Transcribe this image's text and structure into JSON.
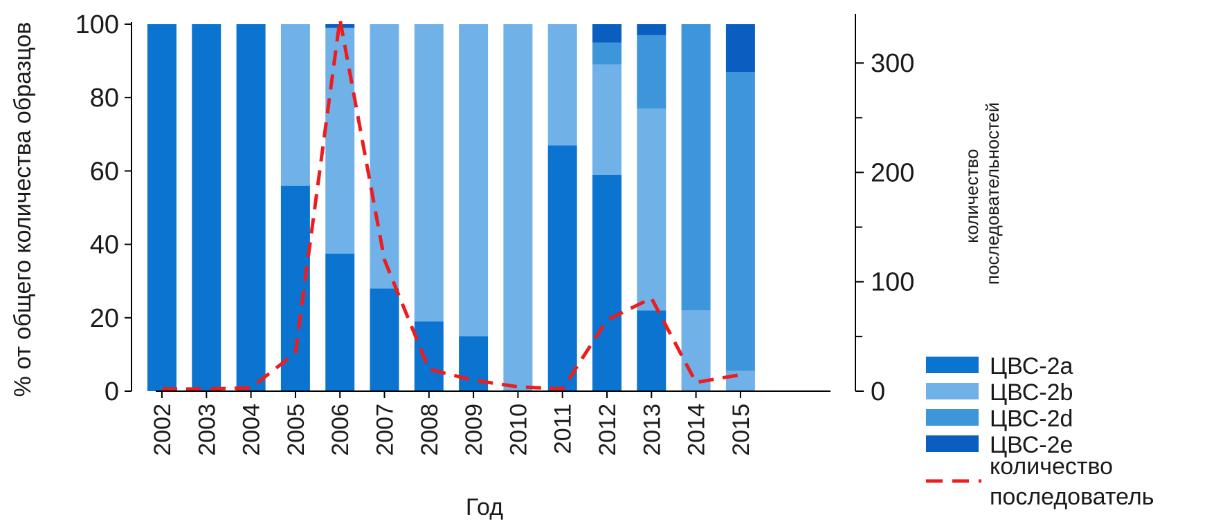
{
  "chart_data": {
    "type": "bar",
    "stacked": true,
    "categories": [
      "2002",
      "2003",
      "2004",
      "2005",
      "2006",
      "2007",
      "2008",
      "2009",
      "2010",
      "2011",
      "2012",
      "2013",
      "2014",
      "2015"
    ],
    "xlabel": "Год",
    "ylabel": "% от общего количества образцов",
    "ylabel_right": "количество последовательностей",
    "ylim": [
      0,
      100
    ],
    "ylim_right": [
      0,
      345
    ],
    "yticks": [
      0,
      20,
      40,
      60,
      80,
      100
    ],
    "yticks_right_labeled": [
      0,
      100,
      200,
      300
    ],
    "yticks_right_minor": [
      50,
      150,
      250
    ],
    "grid": false,
    "legend_position": "bottom-right",
    "series": [
      {
        "name": "ЦВС-2a",
        "color": "#0A74D0",
        "values": [
          100,
          100,
          100,
          56,
          37.5,
          28,
          19,
          15,
          0,
          67,
          59,
          22,
          0,
          0
        ]
      },
      {
        "name": "ЦВС-2b",
        "color": "#70B2E8",
        "values": [
          0,
          0,
          0,
          44,
          61.5,
          72,
          81,
          85,
          100,
          33,
          30,
          55,
          22,
          5.5
        ]
      },
      {
        "name": "ЦВС-2d",
        "color": "#3D96DA",
        "values": [
          0,
          0,
          0,
          0,
          0,
          0,
          0,
          0,
          0,
          0,
          6,
          20,
          78,
          81.5
        ]
      },
      {
        "name": "ЦВС-2e",
        "color": "#0A5EC0",
        "values": [
          0,
          0,
          0,
          0,
          1,
          0,
          0,
          0,
          0,
          0,
          5,
          3,
          0,
          13
        ]
      }
    ],
    "line_series": {
      "name": "количество последовательностей",
      "legend_text": [
        "количество",
        "последователь"
      ],
      "color": "#EE1C1C",
      "axis": "right",
      "values": [
        2,
        2,
        3,
        35,
        340,
        120,
        20,
        10,
        4,
        2,
        65,
        85,
        8,
        15
      ]
    }
  }
}
